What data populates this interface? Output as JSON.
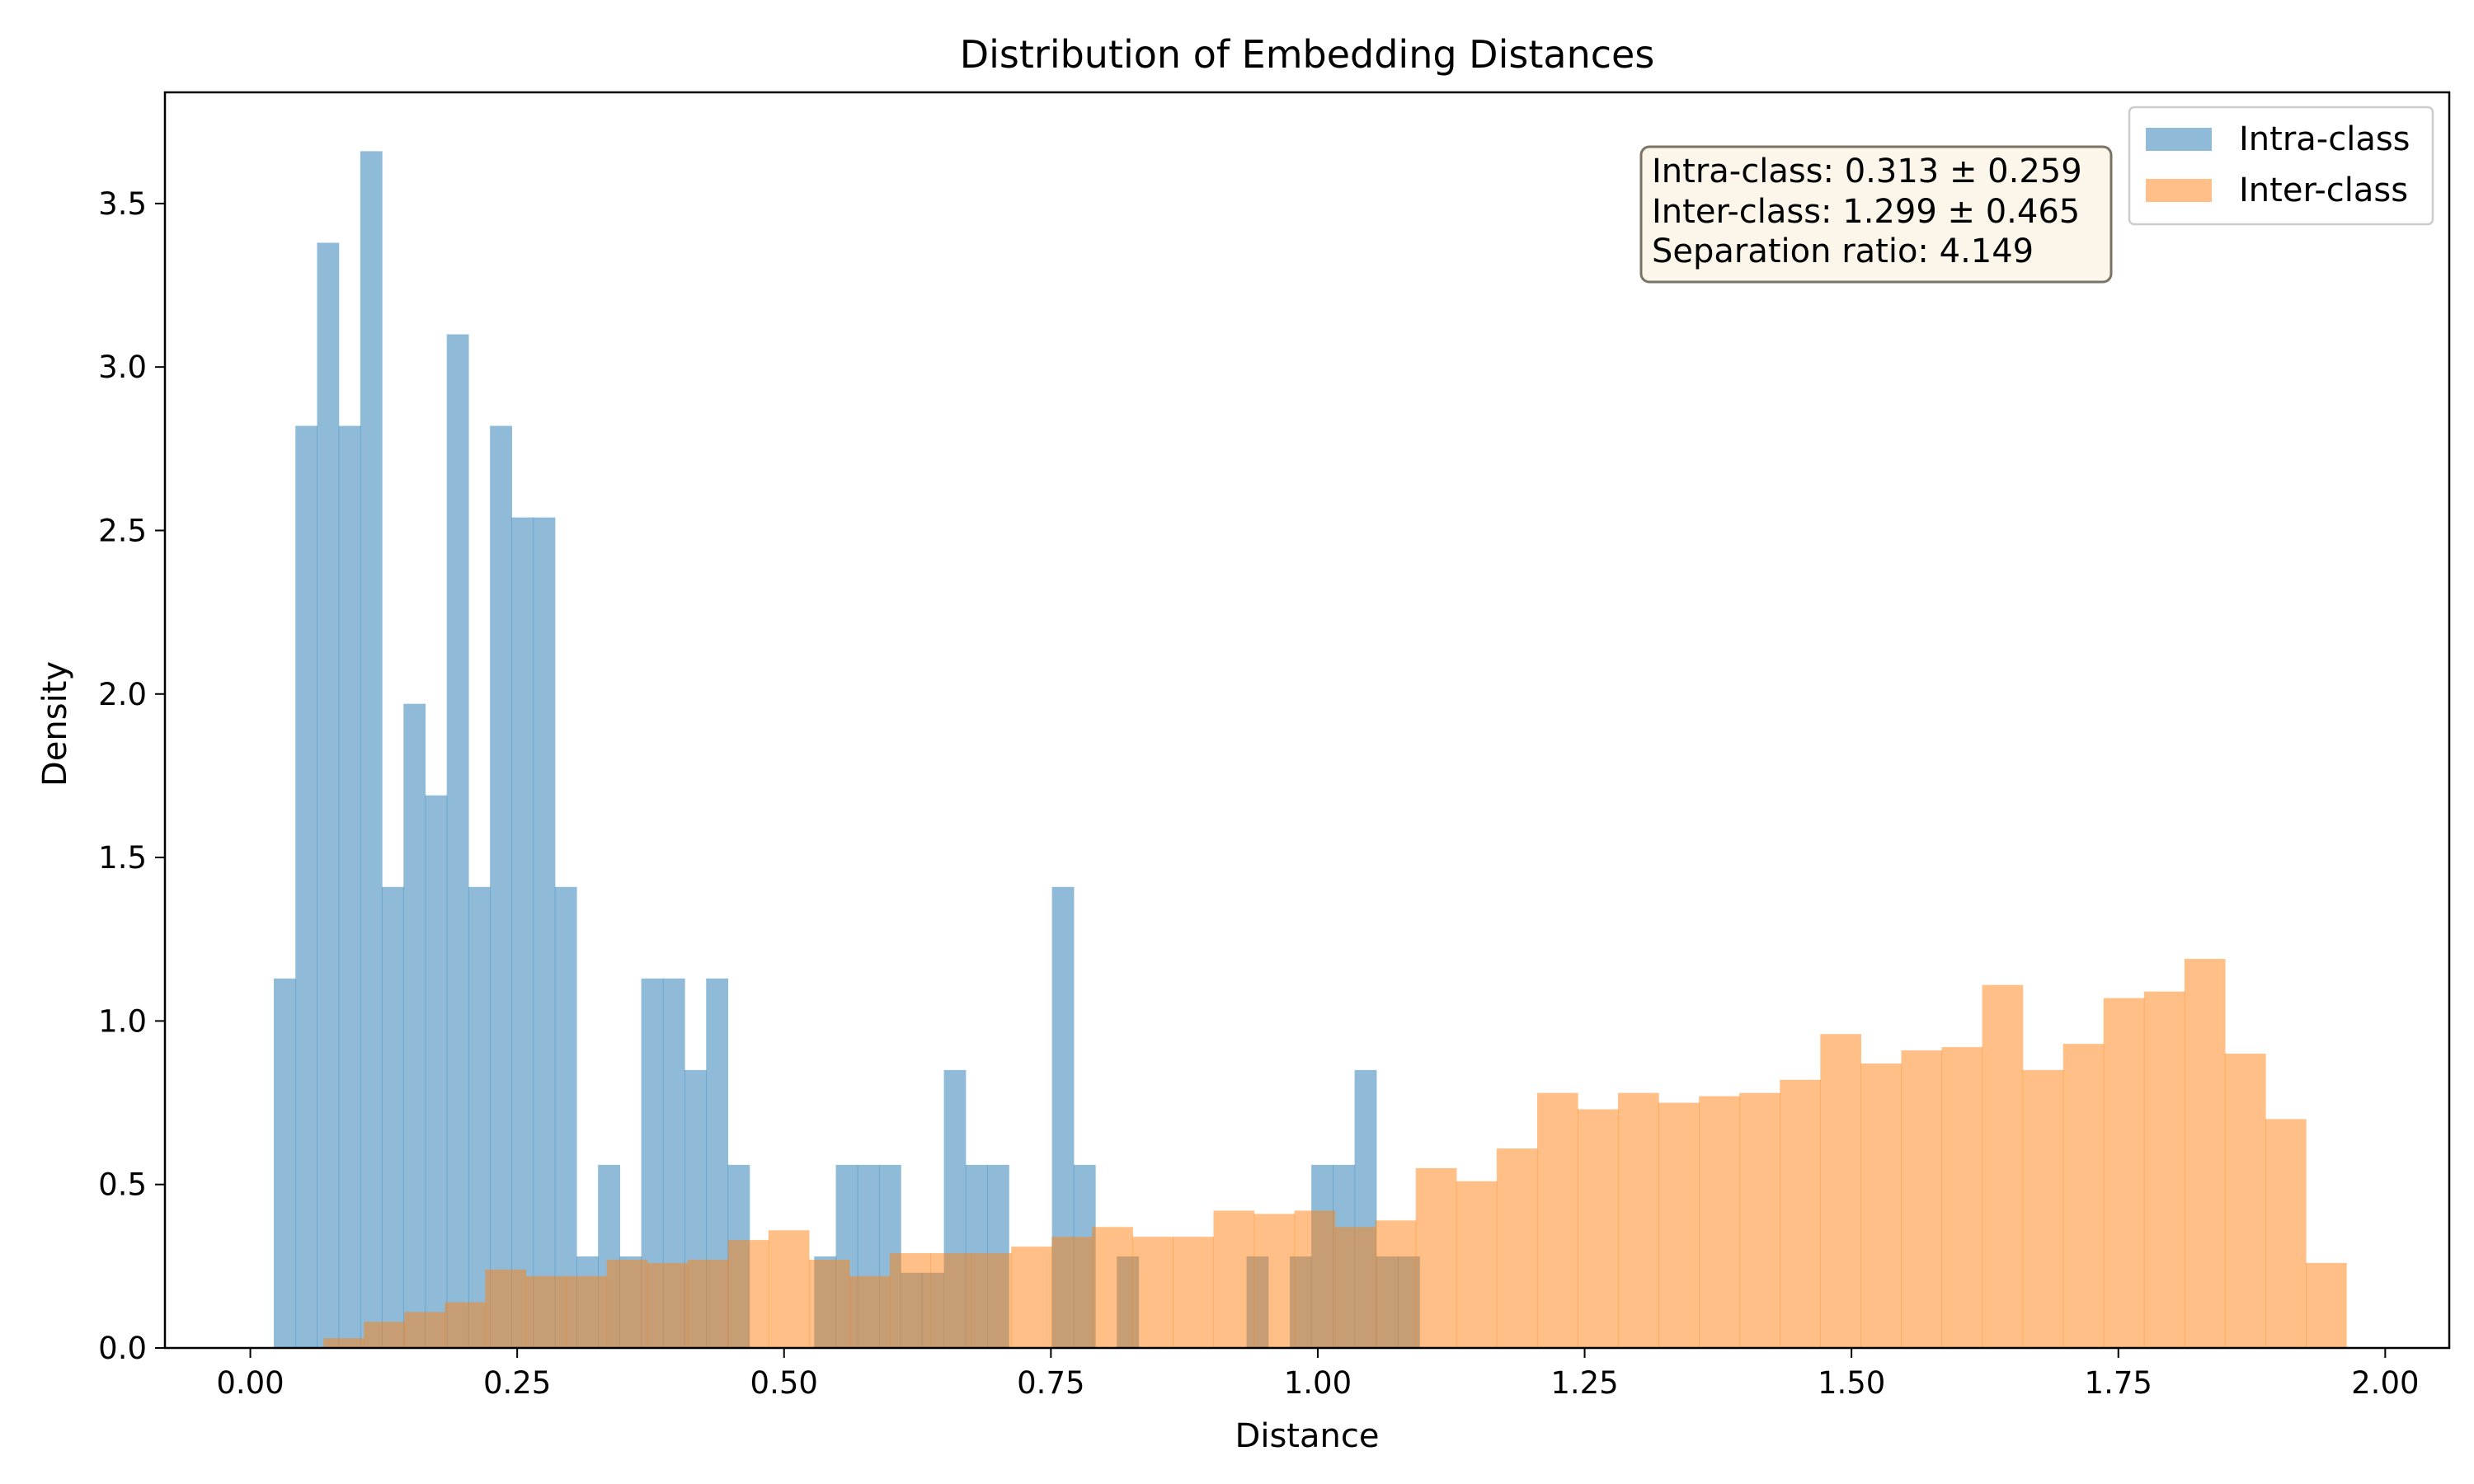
{
  "chart_data": {
    "type": "histogram",
    "title": "Distribution of Embedding Distances",
    "xlabel": "Distance",
    "ylabel": "Density",
    "xlim": [
      -0.08,
      2.06
    ],
    "ylim": [
      0,
      3.84
    ],
    "xticks": [
      0.0,
      0.25,
      0.5,
      0.75,
      1.0,
      1.25,
      1.5,
      1.75,
      2.0
    ],
    "xtick_labels": [
      "0.00",
      "0.25",
      "0.50",
      "0.75",
      "1.00",
      "1.25",
      "1.50",
      "1.75",
      "2.00"
    ],
    "yticks": [
      0.0,
      0.5,
      1.0,
      1.5,
      2.0,
      2.5,
      3.0,
      3.5
    ],
    "ytick_labels": [
      "0.0",
      "0.5",
      "1.0",
      "1.5",
      "2.0",
      "2.5",
      "3.0",
      "3.5"
    ],
    "grid": false,
    "legend_position": "top-right",
    "series": [
      {
        "name": "Intra-class",
        "color": "#1f77b4",
        "alpha": 0.5,
        "bin_start": 0.022,
        "bin_width": 0.02025,
        "densities": [
          1.13,
          2.82,
          3.38,
          2.82,
          3.66,
          1.41,
          1.97,
          1.69,
          3.1,
          1.41,
          2.82,
          2.54,
          2.54,
          1.41,
          0.28,
          0.56,
          0.28,
          1.13,
          1.13,
          0.85,
          1.13,
          0.56,
          0,
          0,
          0,
          0.28,
          0.56,
          0.56,
          0.56,
          0.23,
          0.23,
          0.85,
          0.56,
          0.56,
          0,
          0,
          1.41,
          0.56,
          0,
          0.28,
          0,
          0,
          0,
          0,
          0,
          0.28,
          0,
          0.28,
          0.56,
          0.56,
          0.85,
          0.28,
          0.28
        ]
      },
      {
        "name": "Inter-class",
        "color": "#ff7f0e",
        "alpha": 0.5,
        "bin_start": 0.0685,
        "bin_width": 0.0379,
        "densities": [
          0.03,
          0.08,
          0.11,
          0.14,
          0.24,
          0.22,
          0.22,
          0.27,
          0.26,
          0.27,
          0.33,
          0.36,
          0.27,
          0.22,
          0.29,
          0.29,
          0.29,
          0.31,
          0.34,
          0.37,
          0.34,
          0.34,
          0.42,
          0.41,
          0.42,
          0.37,
          0.39,
          0.55,
          0.51,
          0.61,
          0.78,
          0.73,
          0.78,
          0.75,
          0.77,
          0.78,
          0.82,
          0.96,
          0.87,
          0.91,
          0.92,
          1.11,
          0.85,
          0.93,
          1.07,
          1.09,
          1.19,
          0.9,
          0.7,
          0.26
        ]
      }
    ],
    "annotation": {
      "lines": [
        "Intra-class: 0.313 ± 0.259",
        "Inter-class: 1.299 ± 0.465",
        "Separation ratio: 4.149"
      ],
      "box_color": "#f8ebd5",
      "border_color": "#7a7266"
    }
  }
}
